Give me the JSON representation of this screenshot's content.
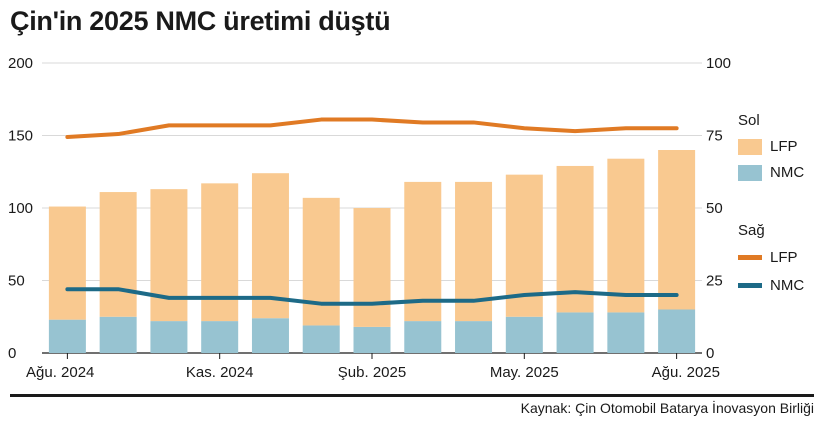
{
  "title": "Çin'in 2025 NMC üretimi düştü",
  "source": "Kaynak: Çin Otomobil Batarya İnovasyon Birliği",
  "legend": {
    "left_heading": "Sol",
    "right_heading": "Sağ",
    "lfp_label": "LFP",
    "nmc_label": "NMC"
  },
  "colors": {
    "lfp_bar": "#f9c990",
    "nmc_bar": "#97c3d1",
    "lfp_line": "#e07a24",
    "nmc_line": "#1d6a87",
    "grid": "#d9d9d9"
  },
  "chart_data": {
    "type": "bar",
    "x": [
      "2024-08",
      "2024-09",
      "2024-10",
      "2024-11",
      "2024-12",
      "2025-01",
      "2025-02",
      "2025-03",
      "2025-04",
      "2025-05",
      "2025-06",
      "2025-07",
      "2025-08"
    ],
    "x_tick_labels": [
      {
        "index": 0,
        "label": "Ağu. 2024"
      },
      {
        "index": 3,
        "label": "Kas. 2024"
      },
      {
        "index": 6,
        "label": "Şub. 2025"
      },
      {
        "index": 9,
        "label": "May. 2025"
      },
      {
        "index": 12,
        "label": "Ağu. 2025"
      }
    ],
    "left_axis": {
      "ylim": [
        0,
        200
      ],
      "ticks": [
        0,
        50,
        100,
        150,
        200
      ]
    },
    "right_axis": {
      "ylim": [
        0,
        100
      ],
      "ticks": [
        0,
        25,
        50,
        75,
        100
      ]
    },
    "bars_stacked": [
      {
        "name": "NMC",
        "axis": "left",
        "values": [
          23,
          25,
          22,
          22,
          24,
          19,
          18,
          22,
          22,
          25,
          28,
          28,
          30
        ]
      },
      {
        "name": "LFP",
        "axis": "left",
        "values": [
          78,
          86,
          91,
          95,
          100,
          88,
          82,
          96,
          96,
          98,
          101,
          106,
          110
        ]
      }
    ],
    "lines": [
      {
        "name": "LFP",
        "axis": "right",
        "values": [
          74.5,
          75.5,
          78.5,
          78.5,
          78.5,
          80.5,
          80.5,
          79.5,
          79.5,
          77.5,
          76.5,
          77.5,
          77.5
        ]
      },
      {
        "name": "NMC",
        "axis": "right",
        "values": [
          22,
          22,
          19,
          19,
          19,
          17,
          17,
          18,
          18,
          20,
          21,
          20,
          20
        ]
      }
    ],
    "grid": true
  }
}
